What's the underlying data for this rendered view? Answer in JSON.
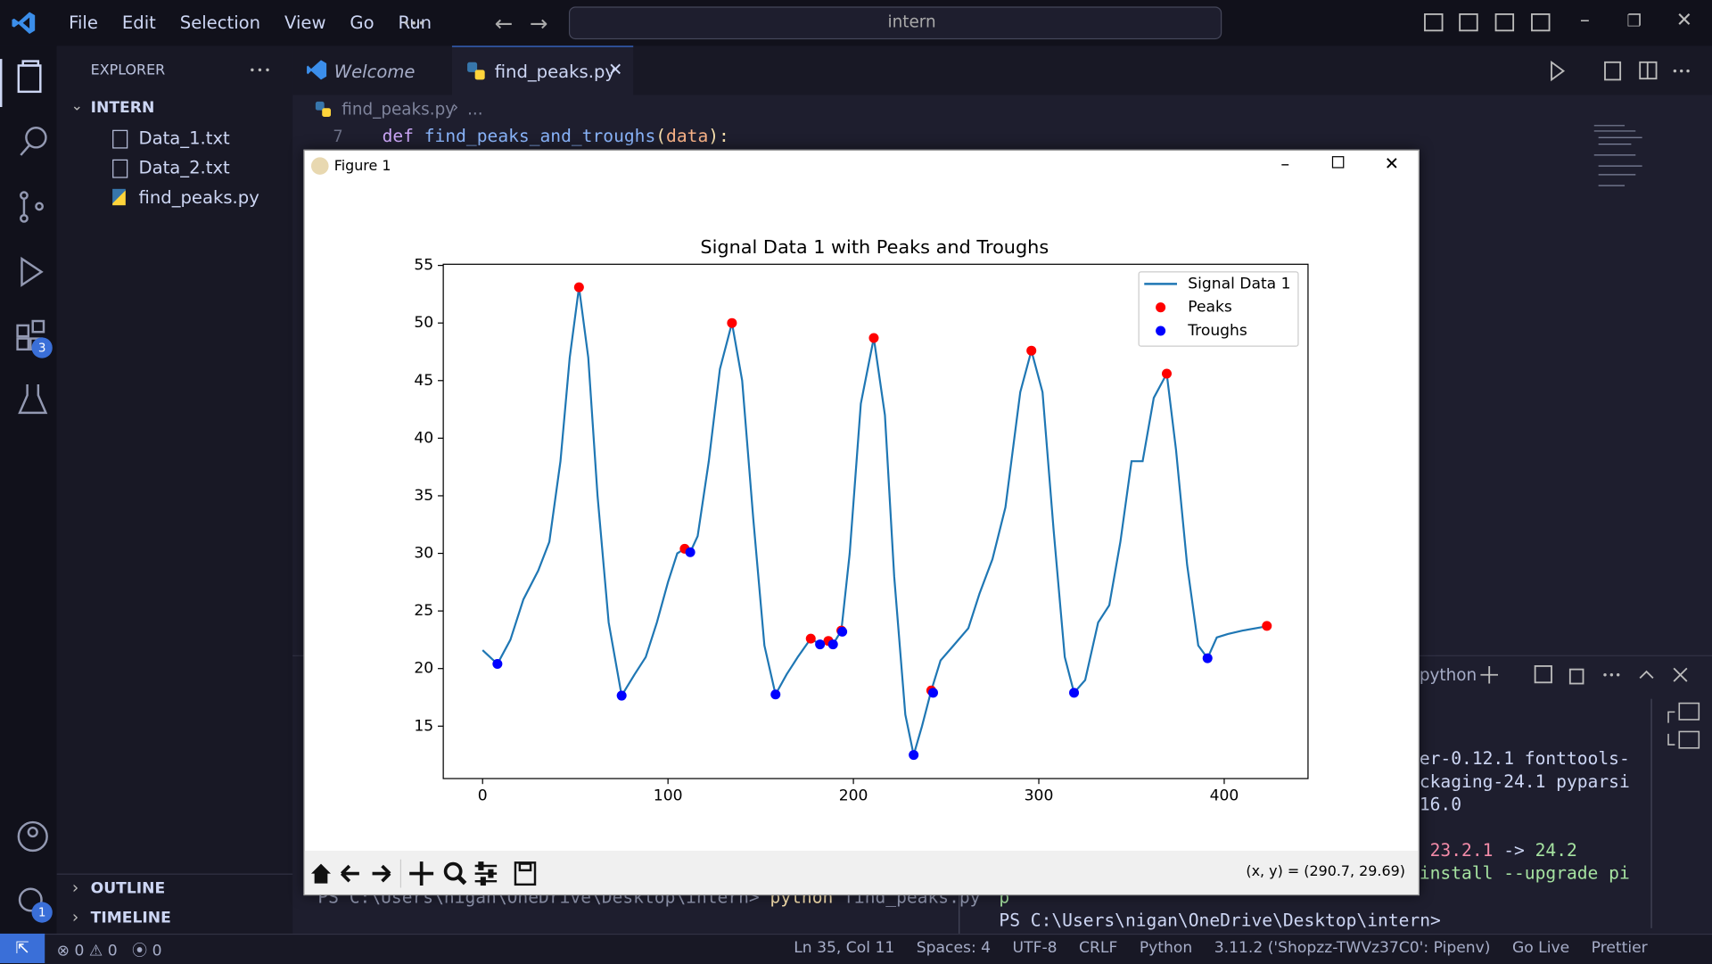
{
  "title_bar": {
    "menu": [
      "File",
      "Edit",
      "Selection",
      "View",
      "Go",
      "Run"
    ],
    "search": "intern"
  },
  "explorer": {
    "header": "EXPLORER",
    "folder": "INTERN",
    "files": [
      "Data_1.txt",
      "Data_2.txt",
      "find_peaks.py"
    ],
    "outline": "OUTLINE",
    "timeline": "TIMELINE"
  },
  "badges": {
    "extensions": "3",
    "settings": "1"
  },
  "tabs": [
    "Welcome",
    "find_peaks.py"
  ],
  "breadcrumb": [
    "find_peaks.py",
    "..."
  ],
  "code": {
    "line_number": "7",
    "tokens": [
      "def ",
      "find_peaks_and_troughs",
      "(",
      "data",
      "):"
    ]
  },
  "figure_window": {
    "title": "Figure 1",
    "coordinates": "(x, y) = (290.7, 29.69)"
  },
  "chart_data": {
    "type": "line",
    "title": "Signal Data 1 with Peaks and Troughs",
    "legend": "upper right",
    "grid": false,
    "xlim": [
      -21.2,
      445.2
    ],
    "ylim": [
      10.45,
      55.1
    ],
    "xticks": [
      0,
      100,
      200,
      300,
      400
    ],
    "yticks": [
      15,
      20,
      25,
      30,
      35,
      40,
      45,
      50,
      55
    ],
    "series": [
      {
        "name": "Signal Data 1",
        "color": "#1f77b4",
        "x": [
          0,
          8,
          15,
          22,
          30,
          36,
          42,
          47,
          52,
          57,
          62,
          68,
          75,
          82,
          88,
          94,
          100,
          105,
          109,
          112,
          116,
          122,
          128,
          134.5,
          140,
          146,
          152,
          158,
          164,
          170,
          177,
          182,
          186.5,
          189,
          193.5,
          198,
          204,
          211,
          217,
          222,
          228,
          232.5,
          237,
          242,
          247,
          254,
          262,
          268,
          275,
          282,
          290,
          296,
          302,
          308,
          314,
          319,
          325,
          332,
          338,
          344,
          350,
          356,
          362,
          369,
          374,
          380,
          386,
          391,
          396,
          402,
          410,
          424
        ],
        "values": [
          21.6,
          20.4,
          22.5,
          26,
          28.5,
          31,
          38,
          47,
          53.1,
          47,
          35,
          24,
          17.65,
          19.5,
          21,
          24,
          27.5,
          30,
          30.4,
          30.1,
          31.5,
          38,
          46,
          50,
          45,
          33,
          22,
          17.75,
          19.5,
          21,
          22.6,
          22.1,
          22.4,
          22.1,
          23.3,
          30,
          43,
          48.7,
          42,
          28,
          16,
          12.5,
          15,
          18.1,
          20.7,
          22,
          23.5,
          26.5,
          29.5,
          34,
          44,
          47.6,
          44,
          32,
          21,
          17.9,
          19,
          24,
          25.5,
          31,
          38,
          38,
          43.5,
          45.6,
          39,
          29,
          22,
          20.9,
          22.7,
          23,
          23.3,
          23.7
        ]
      },
      {
        "name": "Peaks",
        "color": "#ff0000",
        "type": "scatter",
        "x": [
          52,
          109,
          134.5,
          177,
          186.5,
          193.5,
          211,
          242,
          296,
          369,
          423
        ],
        "values": [
          53.1,
          30.4,
          50,
          22.6,
          22.4,
          23.3,
          48.7,
          18.1,
          47.6,
          45.6,
          23.7
        ]
      },
      {
        "name": "Troughs",
        "color": "#0000ff",
        "type": "scatter",
        "x": [
          8,
          75,
          112,
          158,
          182,
          189,
          194,
          232.5,
          243,
          319,
          391
        ],
        "values": [
          20.4,
          17.65,
          30.1,
          17.75,
          22.1,
          22.1,
          23.2,
          12.5,
          17.9,
          17.9,
          20.9
        ]
      }
    ]
  },
  "panel": {
    "terminal_name": "python"
  },
  "terminal": {
    "left_prompt": [
      "PS C:\\Users\\nigan\\OneDrive\\Desktop\\intern>",
      "python",
      "find_peaks.py"
    ],
    "right_lines": [
      "er-0.12.1 fonttools-",
      "ckaging-24.1 pyparsi",
      "16.0"
    ],
    "notice": [
      "23.2.1",
      "->",
      "24.2"
    ],
    "notice2": "install --upgrade pi",
    "tail": "p",
    "right_prompt": "PS C:\\Users\\nigan\\OneDrive\\Desktop\\intern>"
  },
  "status_bar": {
    "errors": "0",
    "warnings": "0",
    "ports": "0",
    "position": "Ln 35, Col 11",
    "spaces": "Spaces: 4",
    "encoding": "UTF-8",
    "eol": "CRLF",
    "language": "Python",
    "interpreter": "3.11.2 ('Shopzz-TWVz37C0': Pipenv)",
    "go_live": "Go Live",
    "prettier": "Prettier"
  }
}
